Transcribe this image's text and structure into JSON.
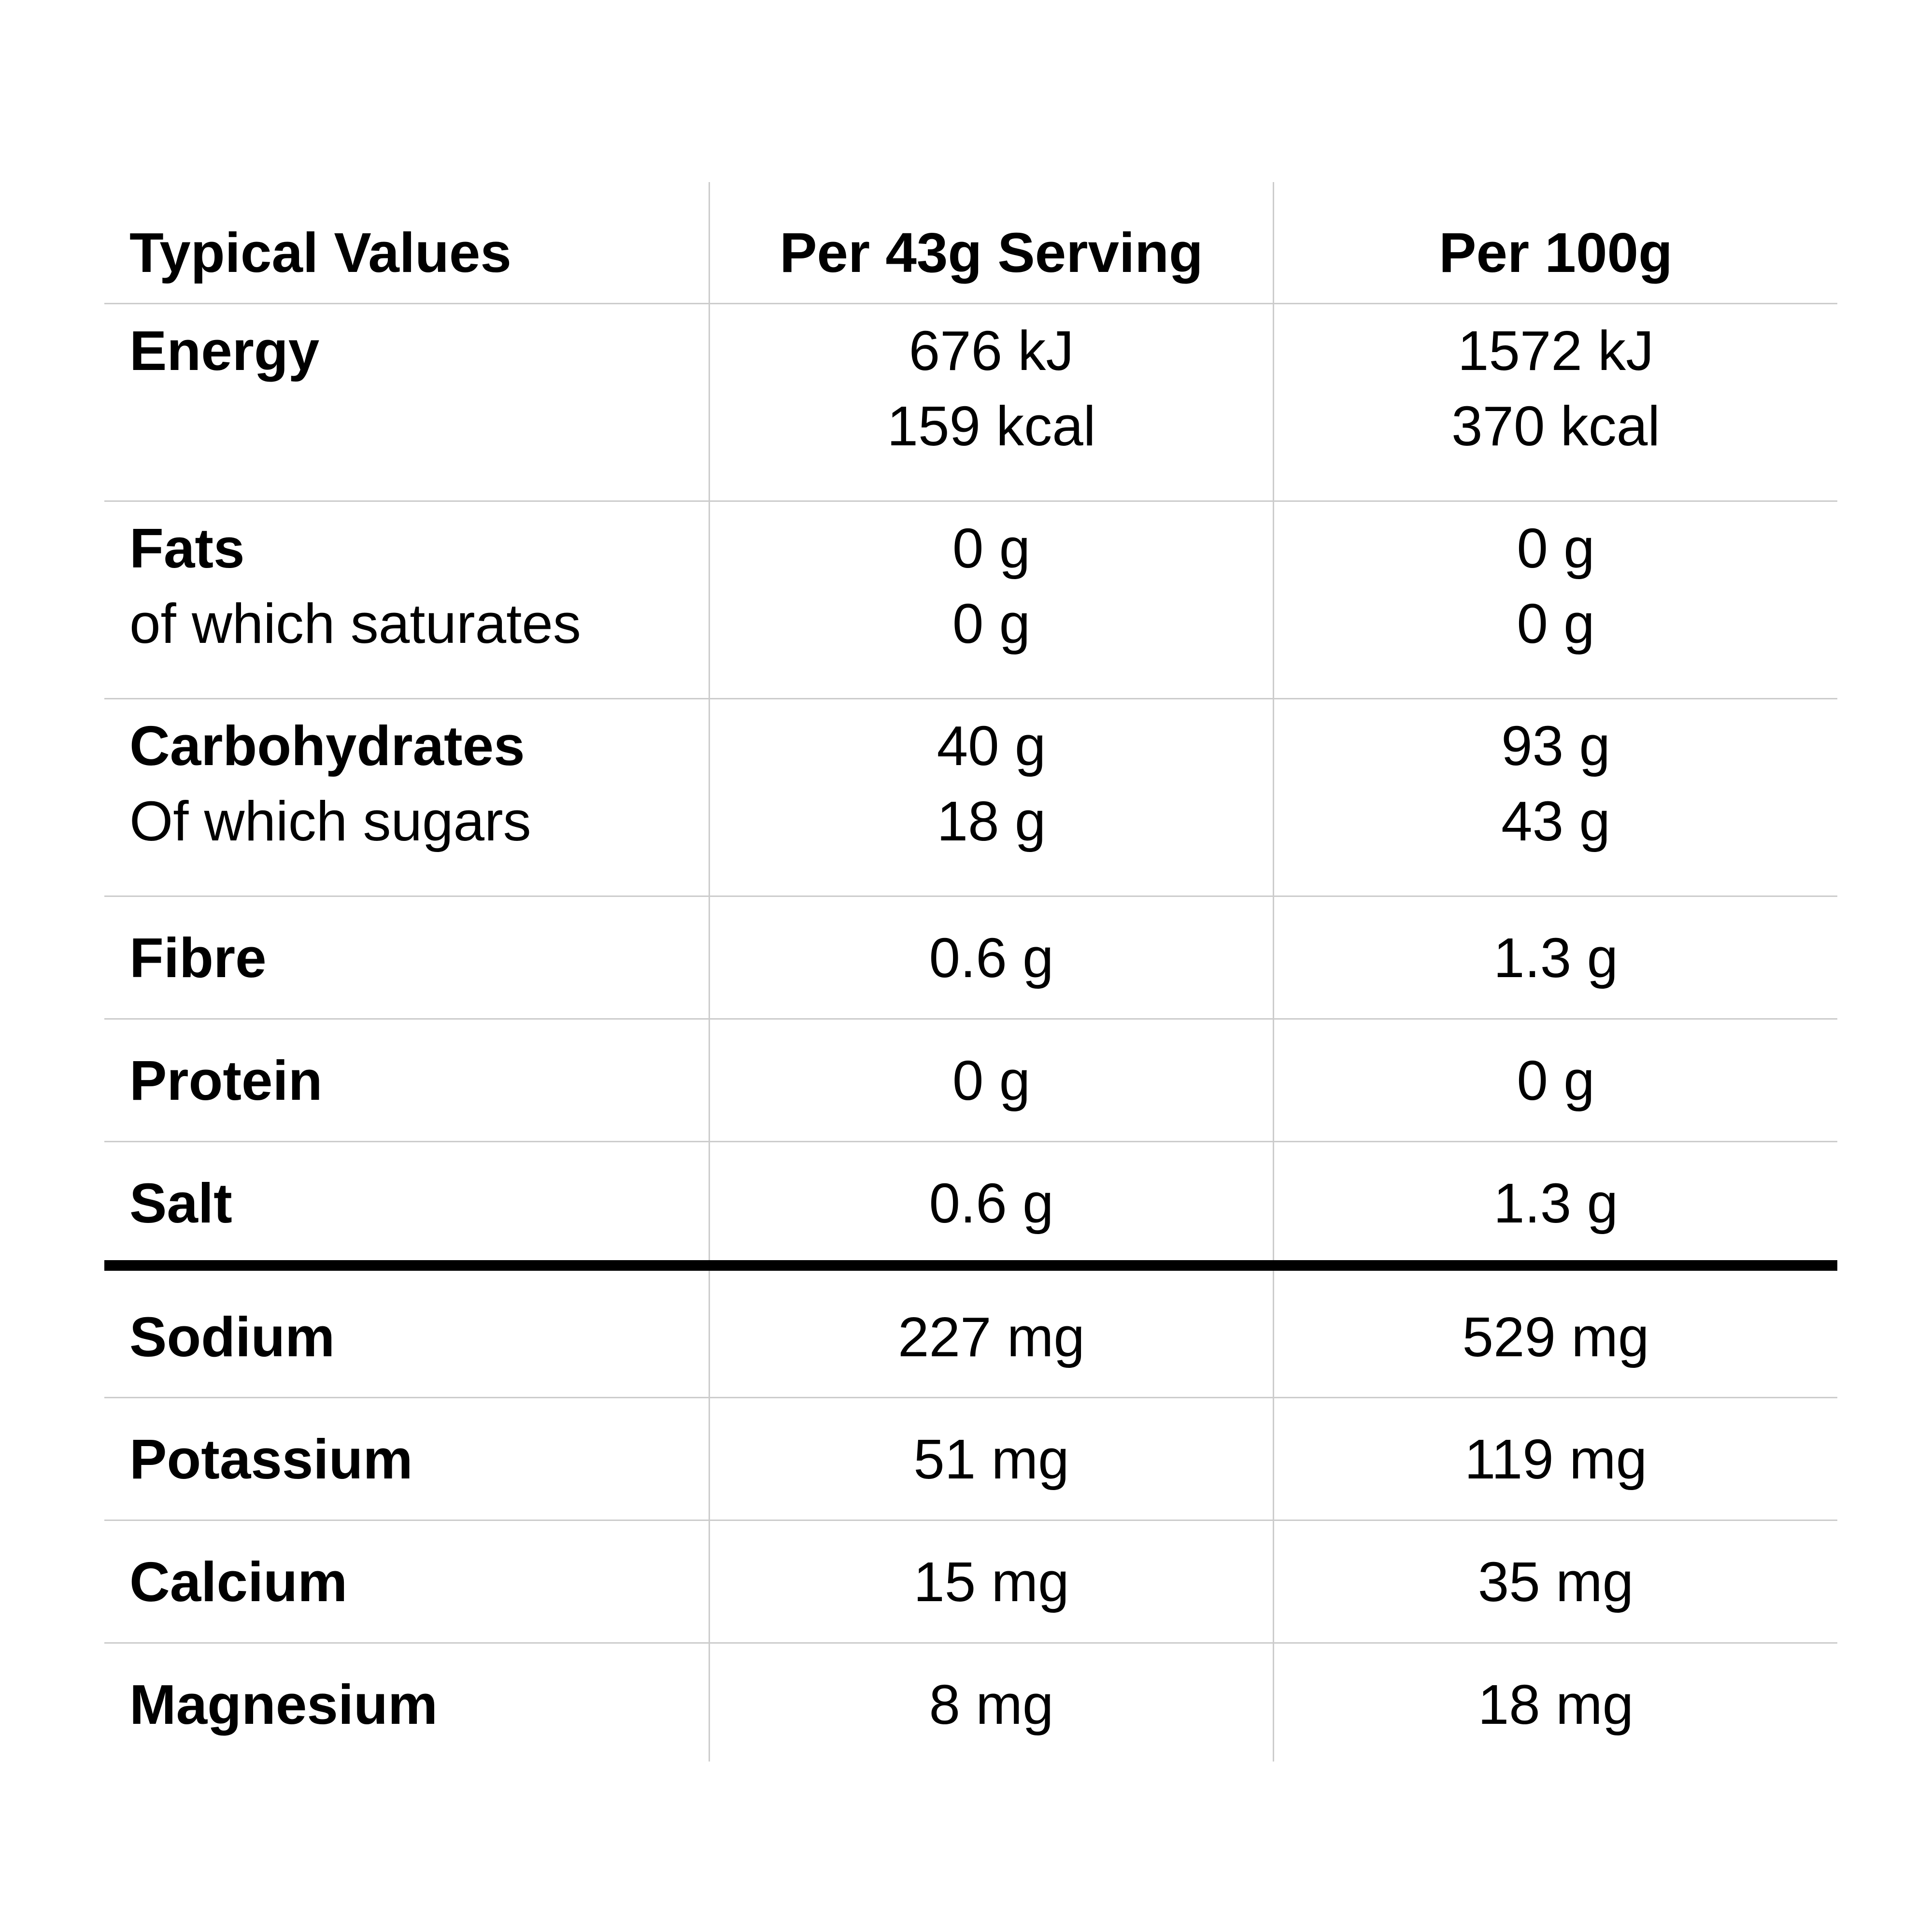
{
  "header": {
    "name": "Typical Values",
    "per_serving": "Per 43g Serving",
    "per_100g": "Per 100g"
  },
  "rows": [
    {
      "name": "Energy",
      "sub_name": "",
      "per_serving": [
        "676 kJ",
        "159 kcal"
      ],
      "per_100g": [
        "1572 kJ",
        "370 kcal"
      ]
    },
    {
      "name": "Fats",
      "sub_name": "of which saturates",
      "per_serving": [
        "0 g",
        "0 g"
      ],
      "per_100g": [
        "0 g",
        "0 g"
      ]
    },
    {
      "name": "Carbohydrates",
      "sub_name": "Of which sugars",
      "per_serving": [
        "40 g",
        "18 g"
      ],
      "per_100g": [
        "93 g",
        "43 g"
      ]
    },
    {
      "name": "Fibre",
      "per_serving": [
        "0.6 g"
      ],
      "per_100g": [
        "1.3 g"
      ]
    },
    {
      "name": "Protein",
      "per_serving": [
        "0 g"
      ],
      "per_100g": [
        "0 g"
      ]
    },
    {
      "name": "Salt",
      "per_serving": [
        "0.6 g"
      ],
      "per_100g": [
        "1.3 g"
      ]
    },
    {
      "name": "Sodium",
      "per_serving": [
        "227 mg"
      ],
      "per_100g": [
        "529 mg"
      ]
    },
    {
      "name": "Potassium",
      "per_serving": [
        "51 mg"
      ],
      "per_100g": [
        "119 mg"
      ]
    },
    {
      "name": "Calcium",
      "per_serving": [
        "15 mg"
      ],
      "per_100g": [
        "35 mg"
      ]
    },
    {
      "name": "Magnesium",
      "per_serving": [
        "8 mg"
      ],
      "per_100g": [
        "18 mg"
      ]
    }
  ]
}
